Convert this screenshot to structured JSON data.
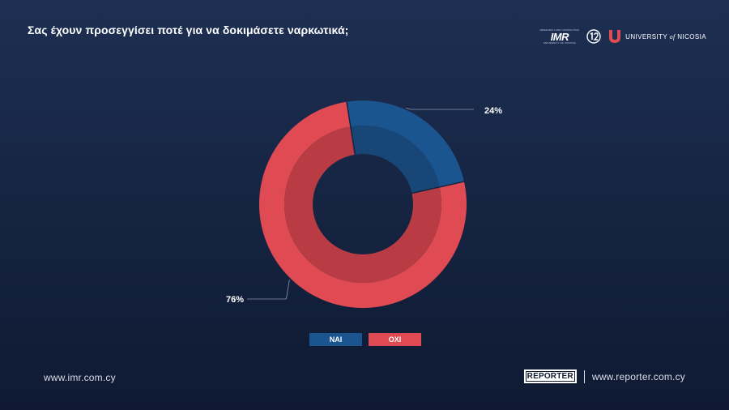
{
  "header": {
    "title": "Σας έχουν προσεγγίσει ποτέ για να δοκιμάσετε ναρκωτικά;",
    "logos": {
      "imr_tiny": "RESEARCH AND CONSULTING",
      "imr": "IMR",
      "imr_sub": "UNIVERSITY OF NICOSIA",
      "unic_prefix": "UNIVERSITY",
      "unic_of": "of",
      "unic_suffix": "NICOSIA"
    }
  },
  "chart_data": {
    "type": "pie",
    "variant": "donut",
    "title": "Σας έχουν προσεγγίσει ποτέ για να δοκιμάσετε ναρκωτικά;",
    "categories": [
      "ΝΑΙ",
      "ΟΧΙ"
    ],
    "values": [
      24,
      76
    ],
    "labels": [
      "24%",
      "76%"
    ],
    "colors": {
      "outer": [
        "#1b5590",
        "#e04b53"
      ],
      "inner": [
        "#184677",
        "#b93c44"
      ]
    },
    "legend_position": "bottom"
  },
  "legend": {
    "items": [
      {
        "label": "ΝΑΙ",
        "color": "#1b5590"
      },
      {
        "label": "ΟΧΙ",
        "color": "#e04b53"
      }
    ]
  },
  "footer": {
    "left_url": "www.imr.com.cy",
    "reporter_logo": "REPORTER",
    "right_url": "www.reporter.com.cy"
  }
}
